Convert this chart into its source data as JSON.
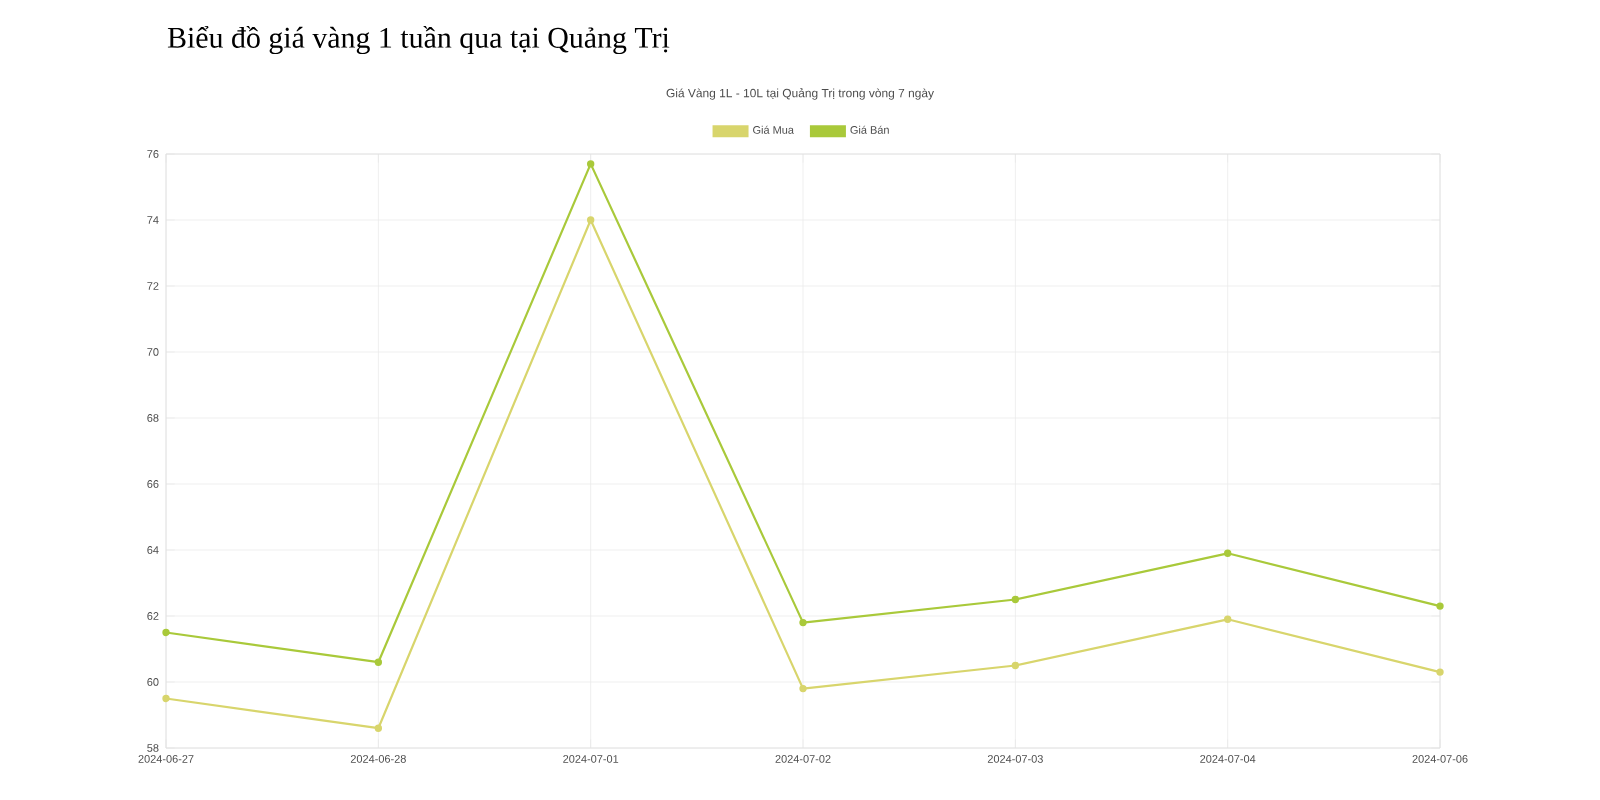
{
  "chart_data": {
    "type": "line",
    "title": "Biểu đồ giá vàng 1 tuần qua tại Quảng Trị",
    "subtitle": "Giá Vàng 1L - 10L tại Quảng Trị trong vòng 7 ngày",
    "categories": [
      "2024-06-27",
      "2024-06-28",
      "2024-07-01",
      "2024-07-02",
      "2024-07-03",
      "2024-07-04",
      "2024-07-06"
    ],
    "series": [
      {
        "name": "Giá Mua",
        "color": "#d8d56c",
        "values": [
          59.5,
          58.6,
          74.0,
          59.8,
          60.5,
          61.9,
          60.3
        ]
      },
      {
        "name": "Giá Bán",
        "color": "#a9c93a",
        "values": [
          61.5,
          60.6,
          75.7,
          61.8,
          62.5,
          63.9,
          62.3
        ]
      }
    ],
    "ylim": [
      58,
      76
    ],
    "yticks": [
      58,
      60,
      62,
      64,
      66,
      68,
      70,
      72,
      74,
      76
    ],
    "grid": true,
    "legend": "top",
    "marker": "circle",
    "line_style": "solid"
  }
}
